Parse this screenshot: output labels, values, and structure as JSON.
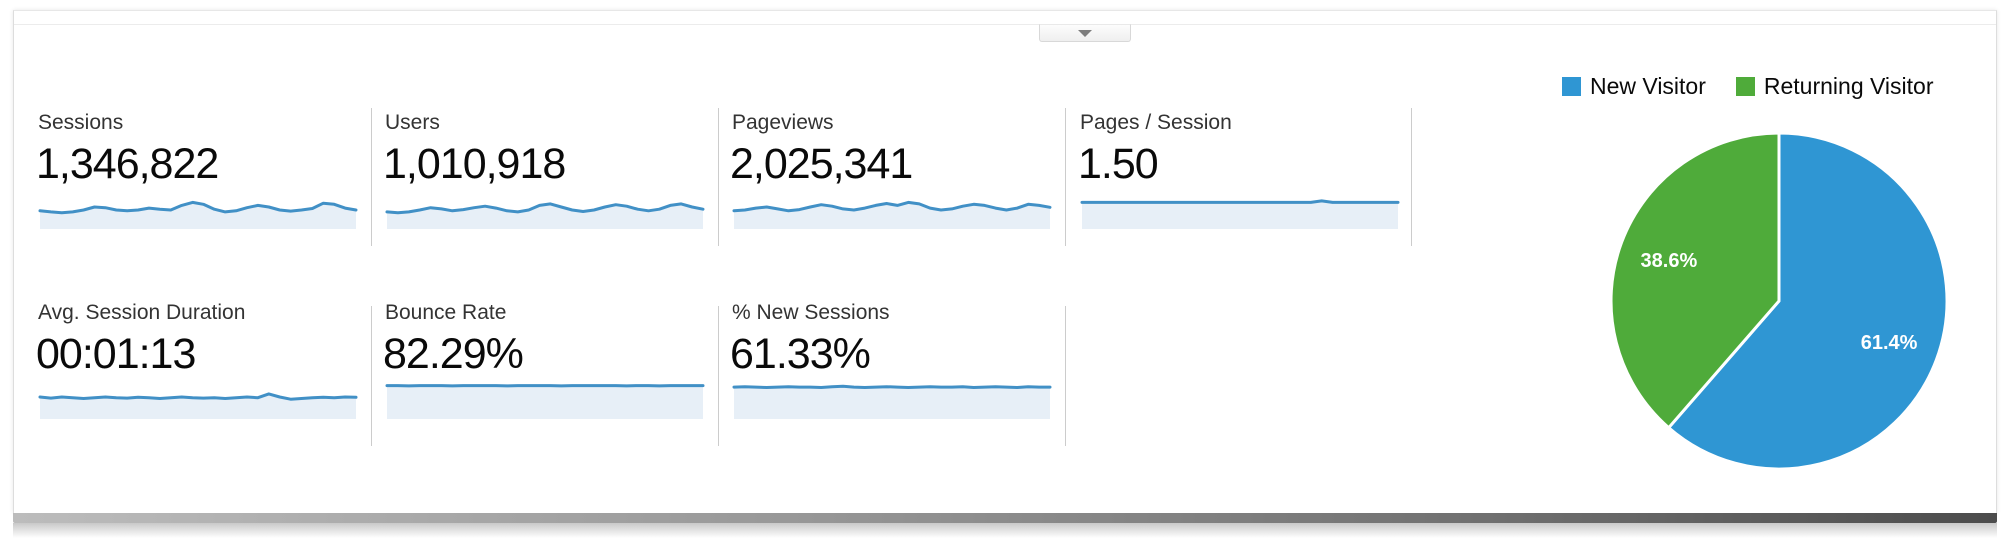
{
  "style": {
    "spark_line": "#4190c6",
    "spark_fill": "#e7eff7",
    "divider": "#cccccc",
    "label_text": "#333333",
    "value_text": "#0a0a0a"
  },
  "collapse_button": {
    "icon": "chevron-down"
  },
  "metrics": {
    "rows": [
      [
        {
          "label": "Sessions",
          "value": "1,346,822"
        },
        {
          "label": "Users",
          "value": "1,010,918"
        },
        {
          "label": "Pageviews",
          "value": "2,025,341"
        },
        {
          "label": "Pages / Session",
          "value": "1.50"
        }
      ],
      [
        {
          "label": "Avg. Session Duration",
          "value": "00:01:13"
        },
        {
          "label": "Bounce Rate",
          "value": "82.29%"
        },
        {
          "label": "% New Sessions",
          "value": "61.33%"
        }
      ]
    ]
  },
  "chart_data": [
    {
      "type": "pie",
      "title": "",
      "legend_position": "top-right",
      "label_color": "#ffffff",
      "slices": [
        {
          "label": "New Visitor",
          "value": 61.4,
          "display": "61.4%",
          "color": "#2f96d3"
        },
        {
          "label": "Returning Visitor",
          "value": 38.6,
          "display": "38.6%",
          "color": "#4fab3a"
        }
      ]
    },
    {
      "type": "area",
      "metric": "Sessions",
      "note": "sparkline trend, axes unlabeled, values normalized 0-1",
      "values": [
        0.48,
        0.45,
        0.43,
        0.45,
        0.5,
        0.58,
        0.56,
        0.5,
        0.48,
        0.5,
        0.55,
        0.52,
        0.5,
        0.62,
        0.7,
        0.65,
        0.52,
        0.45,
        0.48,
        0.56,
        0.62,
        0.58,
        0.5,
        0.47,
        0.5,
        0.54,
        0.68,
        0.65,
        0.55,
        0.5
      ]
    },
    {
      "type": "area",
      "metric": "Users",
      "note": "sparkline trend, axes unlabeled, values normalized 0-1",
      "values": [
        0.45,
        0.43,
        0.45,
        0.5,
        0.56,
        0.53,
        0.48,
        0.51,
        0.56,
        0.6,
        0.55,
        0.48,
        0.45,
        0.5,
        0.62,
        0.66,
        0.58,
        0.5,
        0.46,
        0.5,
        0.58,
        0.64,
        0.6,
        0.52,
        0.48,
        0.52,
        0.62,
        0.66,
        0.58,
        0.52
      ]
    },
    {
      "type": "area",
      "metric": "Pageviews",
      "note": "sparkline trend, axes unlabeled, values normalized 0-1",
      "values": [
        0.48,
        0.5,
        0.55,
        0.58,
        0.53,
        0.48,
        0.51,
        0.58,
        0.64,
        0.6,
        0.53,
        0.5,
        0.55,
        0.62,
        0.67,
        0.62,
        0.7,
        0.66,
        0.55,
        0.5,
        0.53,
        0.6,
        0.65,
        0.62,
        0.55,
        0.5,
        0.55,
        0.65,
        0.62,
        0.57
      ]
    },
    {
      "type": "area",
      "metric": "Pages / Session",
      "note": "sparkline trend, axes unlabeled, values normalized 0-1",
      "values": [
        0.7,
        0.7,
        0.7,
        0.7,
        0.7,
        0.7,
        0.7,
        0.7,
        0.7,
        0.7,
        0.7,
        0.7,
        0.7,
        0.7,
        0.7,
        0.7,
        0.7,
        0.7,
        0.7,
        0.7,
        0.7,
        0.7,
        0.74,
        0.7,
        0.7,
        0.7,
        0.7,
        0.7,
        0.7,
        0.7
      ]
    },
    {
      "type": "area",
      "metric": "Avg. Session Duration",
      "note": "sparkline trend, axes unlabeled, values normalized 0-1",
      "values": [
        0.58,
        0.55,
        0.58,
        0.56,
        0.54,
        0.56,
        0.58,
        0.56,
        0.55,
        0.57,
        0.56,
        0.54,
        0.56,
        0.58,
        0.56,
        0.55,
        0.56,
        0.54,
        0.56,
        0.58,
        0.56,
        0.66,
        0.58,
        0.52,
        0.54,
        0.56,
        0.57,
        0.56,
        0.58,
        0.57
      ]
    },
    {
      "type": "area",
      "metric": "Bounce Rate",
      "note": "sparkline trend, axes unlabeled, values normalized 0-1",
      "values": [
        0.88,
        0.88,
        0.87,
        0.88,
        0.88,
        0.88,
        0.87,
        0.88,
        0.88,
        0.88,
        0.88,
        0.87,
        0.88,
        0.88,
        0.88,
        0.88,
        0.87,
        0.88,
        0.88,
        0.88,
        0.88,
        0.88,
        0.87,
        0.88,
        0.88,
        0.87,
        0.88,
        0.88,
        0.88,
        0.88
      ]
    },
    {
      "type": "area",
      "metric": "% New Sessions",
      "note": "sparkline trend, axes unlabeled, values normalized 0-1",
      "values": [
        0.84,
        0.85,
        0.84,
        0.83,
        0.84,
        0.85,
        0.84,
        0.84,
        0.83,
        0.85,
        0.86,
        0.84,
        0.83,
        0.84,
        0.85,
        0.84,
        0.83,
        0.84,
        0.85,
        0.84,
        0.84,
        0.85,
        0.83,
        0.84,
        0.85,
        0.84,
        0.83,
        0.85,
        0.84,
        0.84
      ]
    }
  ]
}
